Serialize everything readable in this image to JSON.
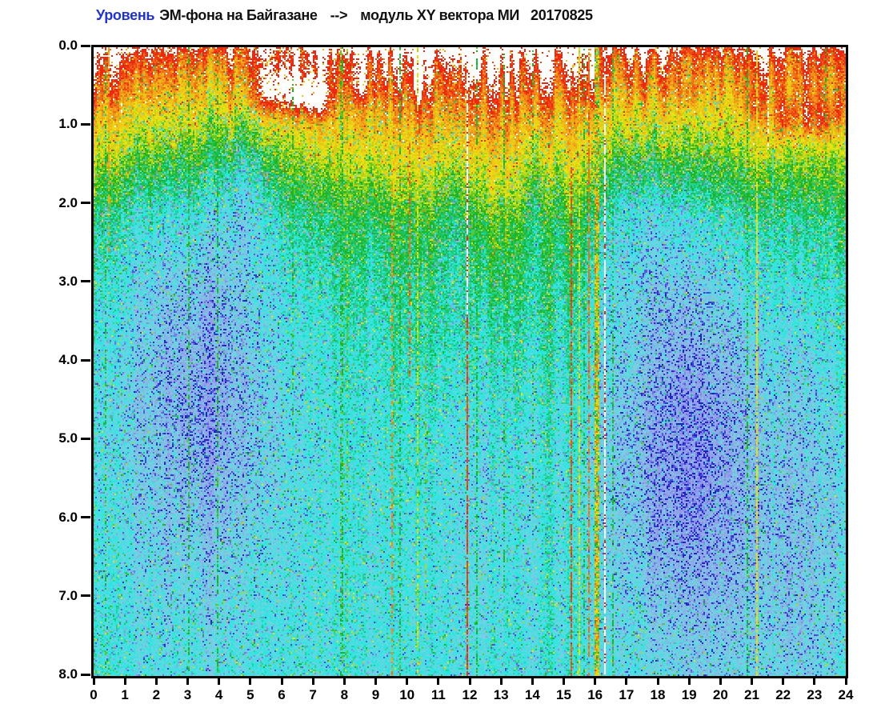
{
  "title": {
    "part1": "Уровень",
    "part2": "ЭМ-фона на Байгазане",
    "arrow": "-->",
    "part3": "модуль XY вектора МИ",
    "date": "20170825",
    "part1_color": "#2233cc"
  },
  "chart_data": {
    "type": "heatmap",
    "subtype": "spectrogram",
    "title": "Уровень ЭМ-фона на Байгазане --> модуль XY вектора МИ 20170825",
    "xlabel": "",
    "ylabel": "",
    "x_range": [
      0,
      24
    ],
    "y_range": [
      0,
      8
    ],
    "y_direction": "down",
    "x_tick_labels": [
      "0",
      "1",
      "2",
      "3",
      "4",
      "5",
      "6",
      "7",
      "8",
      "9",
      "10",
      "11",
      "12",
      "13",
      "14",
      "15",
      "16",
      "17",
      "18",
      "19",
      "20",
      "21",
      "22",
      "23",
      "24"
    ],
    "y_tick_labels": [
      "0.0",
      "1.0",
      "2.0",
      "3.0",
      "4.0",
      "5.0",
      "6.0",
      "7.0",
      "8.0"
    ],
    "grid": false,
    "legend": "none",
    "description": "24-hour electromagnetic background spectrogram. High intensity (white/red/orange/yellow) near 0, decaying with depth through green into a cyan background; low-intensity lavender/blue clouds around hours 1-6 and 16.5-21 at depths 2.5-8; saturated white patches near hours 5.5-7.5 and 21.8-23.8 at depth 0.4-1; elevated daytime band hours 8-16 pushes yellow/red deeper; many narrow vertical interference lines (green, yellow, orange, red, white, cyan).",
    "render": {
      "seed": 20170825,
      "cells_w": 470,
      "cells_h": 393,
      "palette_stops": [
        [
          0.0,
          [
            24,
            24,
            190
          ]
        ],
        [
          0.13,
          [
            80,
            80,
            232
          ]
        ],
        [
          0.24,
          [
            152,
            152,
            236
          ]
        ],
        [
          0.36,
          [
            120,
            208,
            224
          ]
        ],
        [
          0.46,
          [
            40,
            232,
            228
          ]
        ],
        [
          0.57,
          [
            24,
            180,
            40
          ]
        ],
        [
          0.67,
          [
            230,
            230,
            20
          ]
        ],
        [
          0.77,
          [
            240,
            184,
            24
          ]
        ],
        [
          0.85,
          [
            240,
            120,
            24
          ]
        ],
        [
          0.92,
          [
            238,
            40,
            16
          ]
        ],
        [
          0.975,
          [
            238,
            40,
            16
          ]
        ],
        [
          1.0,
          [
            255,
            255,
            255
          ]
        ]
      ],
      "white_cut": 0.98,
      "depth_profile": [
        [
          0,
          0.93
        ],
        [
          0.5,
          0.8
        ],
        [
          0.9,
          0.7
        ],
        [
          1.5,
          0.6
        ],
        [
          2.2,
          0.51
        ],
        [
          3.0,
          0.475
        ],
        [
          4.5,
          0.45
        ],
        [
          6.5,
          0.44
        ],
        [
          8,
          0.435
        ]
      ],
      "bumps": [
        {
          "t": 12.2,
          "sigma": 3.4,
          "amp": 0.1,
          "mode": "exp",
          "dscale": 2.8
        },
        {
          "t": 12.2,
          "sigma": 4.5,
          "amp": 0.05,
          "mode": "gauss",
          "dscale": 3.5
        },
        {
          "t": 21.2,
          "sigma": 3.0,
          "amp": 0.055,
          "mode": "exp",
          "dscale": 2.2
        },
        {
          "t": 0.2,
          "sigma": 0.8,
          "amp": 0.05,
          "mode": "exp",
          "dscale": 1.6
        }
      ],
      "white_patches": [
        [
          5.75,
          0.55,
          0.5,
          0.22,
          0.24
        ],
        [
          6.65,
          0.6,
          0.38,
          0.2,
          0.22
        ],
        [
          7.2,
          0.65,
          0.3,
          0.18,
          0.18
        ],
        [
          8.55,
          0.5,
          0.22,
          0.15,
          0.12
        ],
        [
          10.35,
          0.45,
          0.18,
          0.14,
          0.12
        ],
        [
          15.9,
          0.5,
          0.3,
          0.25,
          0.1
        ],
        [
          19.0,
          0.62,
          0.18,
          0.14,
          0.11
        ],
        [
          21.05,
          0.8,
          0.18,
          0.18,
          0.12
        ],
        [
          22.15,
          0.9,
          0.3,
          0.2,
          0.2
        ],
        [
          22.8,
          0.85,
          0.15,
          0.16,
          0.16
        ],
        [
          23.3,
          0.92,
          0.28,
          0.2,
          0.2
        ],
        [
          23.8,
          0.8,
          0.15,
          0.15,
          0.12
        ]
      ],
      "low_clouds": [
        [
          3.3,
          4.3,
          2.3,
          2.1,
          0.12
        ],
        [
          3.6,
          4.2,
          1.1,
          1.3,
          0.05
        ],
        [
          18.8,
          4.8,
          2.0,
          2.0,
          0.13
        ],
        [
          18.7,
          5.3,
          1.1,
          1.4,
          0.06
        ],
        [
          22.6,
          6.2,
          1.7,
          1.9,
          0.08
        ],
        [
          12.5,
          5.6,
          1.3,
          1.6,
          0.055
        ],
        [
          4.9,
          1.7,
          0.55,
          0.75,
          0.09
        ],
        [
          17.4,
          2.0,
          0.85,
          1.05,
          0.08
        ],
        [
          11.5,
          2.1,
          0.4,
          0.8,
          0.06
        ],
        [
          14.25,
          1.7,
          0.38,
          0.7,
          0.06
        ]
      ],
      "artifact_lines": [
        {
          "t": 0.35,
          "w": 1,
          "d0": 0,
          "d1": 8,
          "level": 0.57,
          "p": 0.35,
          "color": "green"
        },
        {
          "t": 0.45,
          "w": 1,
          "d0": 0,
          "d1": 2.6,
          "level": 0.8,
          "p": 0.7,
          "color": "orange"
        },
        {
          "t": 3.02,
          "w": 1,
          "d0": 0,
          "d1": 8,
          "level": 0.57,
          "p": 0.5,
          "color": "green"
        },
        {
          "t": 3.93,
          "w": 1,
          "d0": 0,
          "d1": 8,
          "level": 0.57,
          "p": 0.5,
          "color": "green"
        },
        {
          "t": 5.3,
          "w": 1,
          "d0": 1,
          "d1": 8,
          "level": 0.46,
          "p": 0.45,
          "color": "cyan"
        },
        {
          "t": 6.35,
          "w": 1,
          "d0": 0.4,
          "d1": 5,
          "level": 0.57,
          "p": 0.4,
          "color": "green"
        },
        {
          "t": 7.85,
          "w": 2,
          "d0": 0,
          "d1": 8,
          "level": 0.58,
          "p": 0.45,
          "color": "green"
        },
        {
          "t": 8.05,
          "w": 1,
          "d0": 0,
          "d1": 8,
          "level": 0.62,
          "p": 0.3,
          "color": "yellow-green"
        },
        {
          "t": 9.5,
          "w": 1,
          "d0": 1.5,
          "d1": 8,
          "level": 0.82,
          "p": 0.5,
          "color": "orange"
        },
        {
          "t": 9.75,
          "w": 1,
          "d0": 0,
          "d1": 8,
          "level": 0.57,
          "p": 0.55,
          "color": "green"
        },
        {
          "t": 10.05,
          "w": 1,
          "d0": 1.2,
          "d1": 4.2,
          "level": 0.86,
          "p": 0.65,
          "color": "red-orange"
        },
        {
          "t": 10.3,
          "w": 1,
          "d0": 0,
          "d1": 8,
          "level": 0.66,
          "p": 0.5,
          "color": "yellow"
        },
        {
          "t": 10.55,
          "w": 1,
          "d0": 2,
          "d1": 7,
          "level": 0.62,
          "p": 0.4,
          "color": "yellow-green"
        },
        {
          "t": 11.92,
          "w": 1,
          "d0": 0,
          "d1": 3.4,
          "level": 1.0,
          "p": 0.92,
          "color": "white"
        },
        {
          "t": 11.92,
          "w": 1,
          "d0": 3.4,
          "d1": 8,
          "level": 0.9,
          "p": 0.85,
          "color": "red"
        },
        {
          "t": 12.2,
          "w": 1,
          "d0": 0,
          "d1": 8,
          "level": 0.57,
          "p": 0.5,
          "color": "green"
        },
        {
          "t": 13.05,
          "w": 1,
          "d0": 0,
          "d1": 7,
          "level": 0.57,
          "p": 0.45,
          "color": "green"
        },
        {
          "t": 14.0,
          "w": 1,
          "d0": 0,
          "d1": 6,
          "level": 0.57,
          "p": 0.35,
          "color": "green"
        },
        {
          "t": 15.2,
          "w": 1,
          "d0": 1.5,
          "d1": 8,
          "level": 0.89,
          "p": 0.8,
          "color": "red"
        },
        {
          "t": 15.45,
          "w": 1,
          "d0": 0,
          "d1": 8,
          "level": 0.67,
          "p": 0.7,
          "color": "yellow"
        },
        {
          "t": 15.6,
          "w": 1,
          "d0": 0,
          "d1": 8,
          "level": 0.57,
          "p": 0.4,
          "color": "green"
        },
        {
          "t": 15.8,
          "w": 1,
          "d0": 0,
          "d1": 8,
          "level": 0.85,
          "p": 0.75,
          "color": "orange-red"
        },
        {
          "t": 16.05,
          "w": 3,
          "d0": 0,
          "d1": 8,
          "level": [
            0.5,
            0.88
          ],
          "p": 0.95,
          "color": "multicolor"
        },
        {
          "t": 16.3,
          "w": 1,
          "d0": 0,
          "d1": 8,
          "level": 1.0,
          "p": 0.9,
          "color": "white"
        },
        {
          "t": 16.55,
          "w": 1,
          "d0": 0,
          "d1": 8,
          "level": 0.57,
          "p": 0.5,
          "color": "green"
        },
        {
          "t": 20.85,
          "w": 1,
          "d0": 0,
          "d1": 8,
          "level": 0.57,
          "p": 0.5,
          "color": "green"
        },
        {
          "t": 21.15,
          "w": 1,
          "d0": 0,
          "d1": 8,
          "level": 0.7,
          "p": 0.8,
          "color": "yellow-orange"
        },
        {
          "t": 21.5,
          "w": 1,
          "d0": 0,
          "d1": 1.3,
          "level": 1.0,
          "p": 0.85,
          "color": "white"
        },
        {
          "t": 21.65,
          "w": 1,
          "d0": 1.3,
          "d1": 8,
          "level": 0.44,
          "p": 0.6,
          "color": "cyan"
        },
        {
          "t": 23.35,
          "w": 1,
          "d0": 0,
          "d1": 2.2,
          "level": 0.57,
          "p": 0.4,
          "color": "green"
        }
      ],
      "noise": {
        "cell_sigma": 0.085,
        "quant_levels": 28,
        "outlier_neg_p": 0.055,
        "outlier_pos_p": 0.05,
        "stripe_top_amp": 0.085,
        "stripe_base_amp": 0.02,
        "vein_amp": 0.022,
        "top_row_boost": 0.04
      }
    }
  },
  "axes": {
    "tick_color": "#000000",
    "label_color": "#000000"
  }
}
